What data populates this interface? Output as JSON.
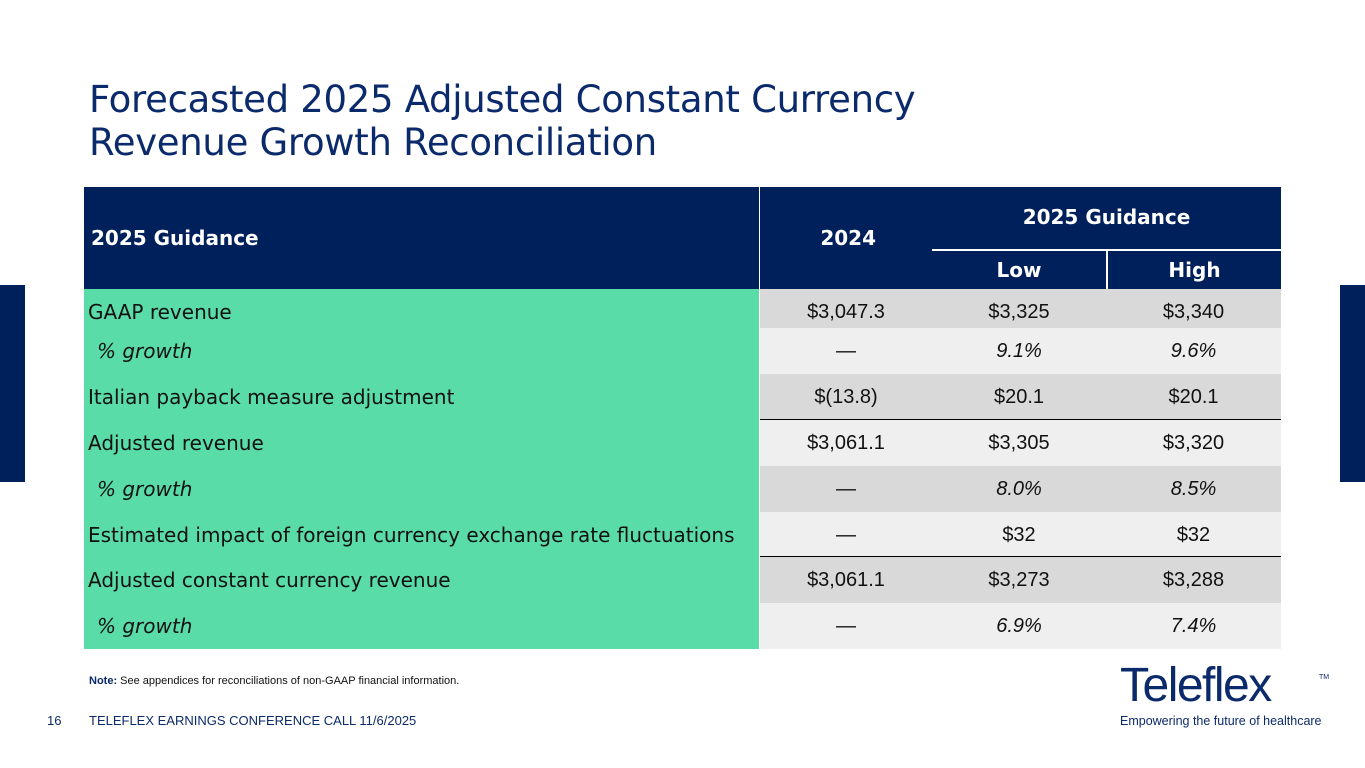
{
  "slide": {
    "title_line1": "Forecasted 2025 Adjusted Constant Currency",
    "title_line2": "Revenue Growth Reconciliation"
  },
  "table": {
    "header": {
      "label": "2025 Guidance",
      "col_2024": "2024",
      "group": "2025 Guidance",
      "low": "Low",
      "high": "High"
    },
    "rows": [
      {
        "label": "GAAP revenue",
        "v2024": "$3,047.3",
        "low": "$3,325",
        "high": "$3,340"
      },
      {
        "label": "% growth",
        "v2024": "—",
        "low": "9.1%",
        "high": "9.6%"
      },
      {
        "label": "Italian payback measure adjustment",
        "v2024": "$(13.8)",
        "low": "$20.1",
        "high": "$20.1"
      },
      {
        "label": "Adjusted revenue",
        "v2024": "$3,061.1",
        "low": "$3,305",
        "high": "$3,320"
      },
      {
        "label": "% growth",
        "v2024": "—",
        "low": "8.0%",
        "high": "8.5%"
      },
      {
        "label": "Estimated impact of foreign currency exchange rate fluctuations",
        "v2024": "—",
        "low": "$32",
        "high": "$32"
      },
      {
        "label": "Adjusted constant currency revenue",
        "v2024": "$3,061.1",
        "low": "$3,273",
        "high": "$3,288"
      },
      {
        "label": "% growth",
        "v2024": "—",
        "low": "6.9%",
        "high": "7.4%"
      }
    ]
  },
  "note": {
    "prefix": "Note:",
    "text": " See appendices for reconciliations of non-GAAP financial information."
  },
  "footer": {
    "page_number": "16",
    "text": "TELEFLEX EARNINGS CONFERENCE CALL 11/6/2025"
  },
  "logo": {
    "wordmark": "Teleflex",
    "trademark": "TM",
    "tagline": "Empowering the future of healthcare"
  },
  "colors": {
    "navy": "#00205b",
    "title_blue": "#0b2a6b",
    "label_green": "#5adca9",
    "shade_dark": "#d9d9d9",
    "shade_light": "#efefef"
  }
}
